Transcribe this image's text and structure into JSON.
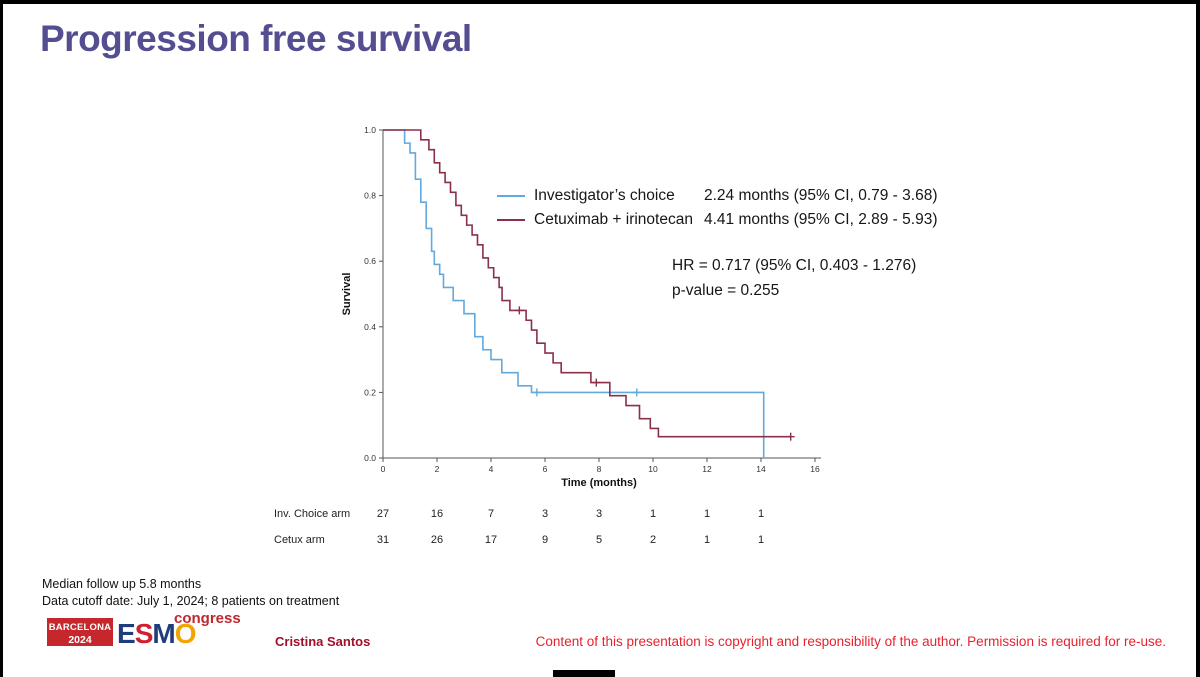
{
  "slide": {
    "title": "Progression free survival",
    "footer_notes": {
      "line1": "Median follow up 5.8 months",
      "line2": "Data cutoff date: July 1, 2024; 8 patients on treatment"
    },
    "credits": {
      "author": "Cristina Santos",
      "copyright": "Content of this presentation is copyright and responsibility of the author. Permission is required for re-use.",
      "badge_line1": "BARCELONA",
      "badge_line2": "2024",
      "esmo_e": "E",
      "esmo_s": "S",
      "esmo_m": "M",
      "esmo_o": "O",
      "congress": "congress"
    },
    "colors": {
      "title": "#534e90",
      "copyright_red": "#e8212e",
      "badge_red": "#c5272d"
    }
  },
  "legend": {
    "entries": [
      {
        "label": "Investigator’s choice",
        "median": "2.24 months (95% CI, 0.79 - 3.68)",
        "color": "#62a9dc"
      },
      {
        "label": "Cetuximab + irinotecan",
        "median": "4.41 months (95% CI, 2.89 - 5.93)",
        "color": "#8b3049"
      }
    ]
  },
  "stats": {
    "hr": "HR = 0.717 (95% CI, 0.403 - 1.276)",
    "pvalue": "p-value = 0.255"
  },
  "chart_data": {
    "type": "line",
    "subtype": "kaplan-meier-step",
    "title": "",
    "xlabel": "Time (months)",
    "ylabel": "Survival",
    "xlim": [
      0,
      16
    ],
    "ylim": [
      0.0,
      1.0
    ],
    "x_ticks": [
      0,
      2,
      4,
      6,
      8,
      10,
      12,
      14,
      16
    ],
    "y_ticks": [
      0.0,
      0.2,
      0.4,
      0.6,
      0.8,
      1.0
    ],
    "grid": false,
    "legend_position": "upper-right-inside",
    "series": [
      {
        "name": "Investigator's choice",
        "color": "#62a9dc",
        "median_months": 2.24,
        "ci_95": "0.79 - 3.68",
        "steps": [
          [
            0.8,
            0.96
          ],
          [
            1.0,
            0.93
          ],
          [
            1.2,
            0.85
          ],
          [
            1.4,
            0.78
          ],
          [
            1.6,
            0.7
          ],
          [
            1.8,
            0.63
          ],
          [
            1.9,
            0.59
          ],
          [
            2.1,
            0.56
          ],
          [
            2.24,
            0.52
          ],
          [
            2.6,
            0.48
          ],
          [
            3.0,
            0.44
          ],
          [
            3.4,
            0.37
          ],
          [
            3.7,
            0.33
          ],
          [
            4.0,
            0.3
          ],
          [
            4.4,
            0.26
          ],
          [
            5.0,
            0.22
          ],
          [
            5.5,
            0.2
          ],
          [
            14.1,
            0.0
          ]
        ],
        "censors": [
          [
            5.7,
            0.2
          ],
          [
            9.4,
            0.2
          ]
        ]
      },
      {
        "name": "Cetuximab + irinotecan",
        "color": "#8b3049",
        "median_months": 4.41,
        "ci_95": "2.89 - 5.93",
        "steps": [
          [
            1.4,
            0.97
          ],
          [
            1.7,
            0.94
          ],
          [
            1.9,
            0.9
          ],
          [
            2.1,
            0.87
          ],
          [
            2.3,
            0.84
          ],
          [
            2.5,
            0.81
          ],
          [
            2.7,
            0.77
          ],
          [
            2.9,
            0.74
          ],
          [
            3.1,
            0.71
          ],
          [
            3.3,
            0.68
          ],
          [
            3.5,
            0.65
          ],
          [
            3.7,
            0.61
          ],
          [
            3.9,
            0.58
          ],
          [
            4.1,
            0.55
          ],
          [
            4.3,
            0.52
          ],
          [
            4.41,
            0.48
          ],
          [
            4.7,
            0.45
          ],
          [
            5.3,
            0.42
          ],
          [
            5.5,
            0.39
          ],
          [
            5.7,
            0.35
          ],
          [
            6.0,
            0.32
          ],
          [
            6.3,
            0.29
          ],
          [
            6.6,
            0.26
          ],
          [
            7.7,
            0.23
          ],
          [
            8.4,
            0.19
          ],
          [
            9.0,
            0.16
          ],
          [
            9.5,
            0.12
          ],
          [
            9.9,
            0.09
          ],
          [
            10.2,
            0.065
          ],
          [
            15.1,
            0.065
          ]
        ],
        "censors": [
          [
            5.05,
            0.45
          ],
          [
            7.9,
            0.23
          ],
          [
            15.1,
            0.065
          ]
        ]
      }
    ],
    "hr_annotation": "HR = 0.717 (95% CI, 0.403 - 1.276)",
    "p_value": 0.255,
    "risk_table": {
      "time_points": [
        0,
        2,
        4,
        6,
        8,
        10,
        12,
        14
      ],
      "rows": [
        {
          "label": "Inv. Choice arm",
          "values": [
            27,
            16,
            7,
            3,
            3,
            1,
            1,
            1
          ]
        },
        {
          "label": "Cetux arm",
          "values": [
            31,
            26,
            17,
            9,
            5,
            2,
            1,
            1
          ]
        }
      ]
    }
  }
}
